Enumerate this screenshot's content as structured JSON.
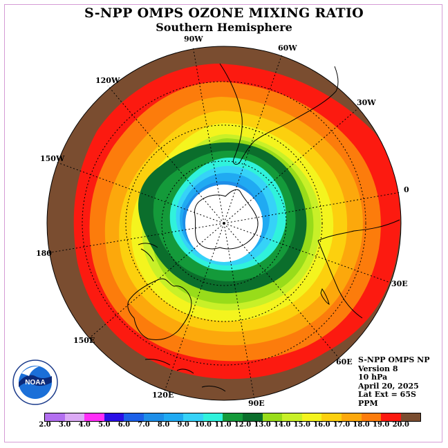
{
  "title": "S-NPP OMPS OZONE MIXING RATIO",
  "subtitle": "Southern Hemisphere",
  "longitude_labels": {
    "w90": "90W",
    "w60": "60W",
    "w30": "30W",
    "w120": "120W",
    "w150": "150W",
    "e0": "0",
    "e180": "180",
    "e30": "30E",
    "e60": "60E",
    "e90": "90E",
    "e120": "120E",
    "e150": "150E"
  },
  "info": {
    "line1": "S-NPP OMPS NP",
    "line2": "Version 8",
    "line3": "10 hPa",
    "line4": "April 20, 2025",
    "line5": "Lat Ext = 65S",
    "line6": "PPM"
  },
  "colorbar": {
    "ticks": [
      "2.0",
      "3.0",
      "4.0",
      "5.0",
      "6.0",
      "7.0",
      "8.0",
      "9.0",
      "10.0",
      "11.0",
      "12.0",
      "13.0",
      "14.0",
      "15.0",
      "16.0",
      "17.0",
      "18.0",
      "19.0",
      "20.0"
    ],
    "colors": [
      "#b36ff0",
      "#dcaaf6",
      "#ff2ef8",
      "#2a10e6",
      "#1c60e8",
      "#1e8ee8",
      "#20aaf2",
      "#36d2f8",
      "#30f2dc",
      "#149a3a",
      "#0b6e2c",
      "#98dc1a",
      "#c8f028",
      "#f4f41e",
      "#fcd00e",
      "#fca80c",
      "#fc7c0c",
      "#fc1a10",
      "#7a4d30"
    ]
  },
  "logo_text": "NOAA",
  "logo_ring_text": "NATIONAL OCEANIC AND ATMOSPHERIC ADMINISTRATION · U.S. DEPARTMENT OF COMMERCE"
}
